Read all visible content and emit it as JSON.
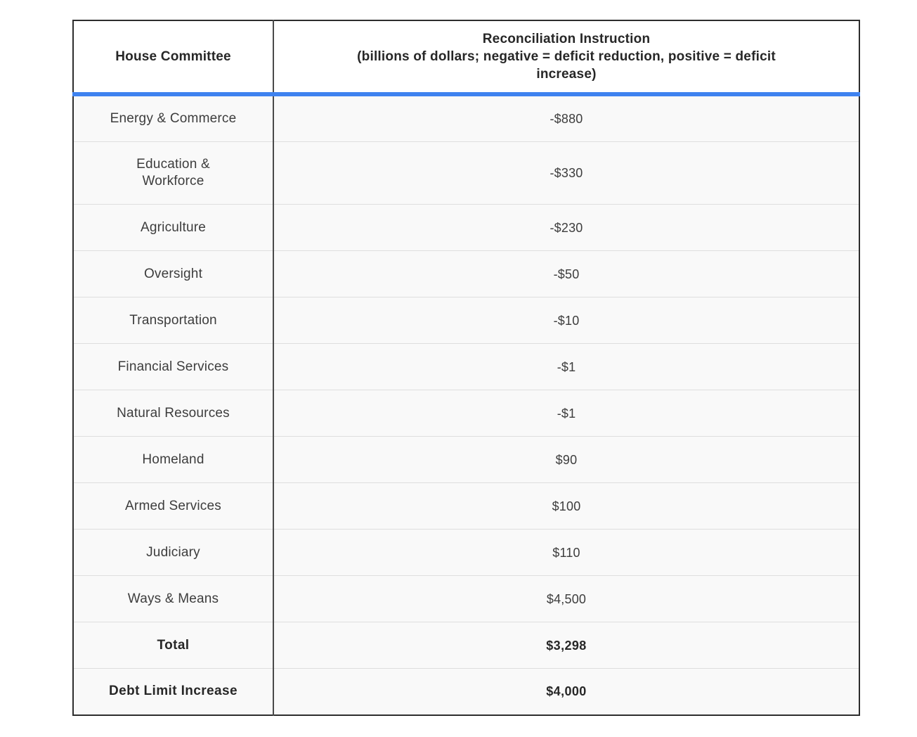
{
  "table": {
    "header": {
      "committee": "House Committee",
      "instruction": "Reconciliation Instruction\n(billions of dollars; negative = deficit reduction, positive = deficit\nincrease)"
    },
    "rows": [
      {
        "committee": "Energy & Commerce",
        "value": "-$880",
        "bold": false
      },
      {
        "committee": "Education &\nWorkforce",
        "value": "-$330",
        "bold": false
      },
      {
        "committee": "Agriculture",
        "value": "-$230",
        "bold": false
      },
      {
        "committee": "Oversight",
        "value": "-$50",
        "bold": false
      },
      {
        "committee": "Transportation",
        "value": "-$10",
        "bold": false
      },
      {
        "committee": "Financial Services",
        "value": "-$1",
        "bold": false
      },
      {
        "committee": "Natural Resources",
        "value": "-$1",
        "bold": false
      },
      {
        "committee": "Homeland",
        "value": "$90",
        "bold": false
      },
      {
        "committee": "Armed Services",
        "value": "$100",
        "bold": false
      },
      {
        "committee": "Judiciary",
        "value": "$110",
        "bold": false
      },
      {
        "committee": "Ways & Means",
        "value": "$4,500",
        "bold": false
      },
      {
        "committee": "Total",
        "value": "$3,298",
        "bold": true
      },
      {
        "committee": "Debt Limit Increase",
        "value": "$4,000",
        "bold": true
      }
    ]
  },
  "colors": {
    "accent_blue": "#3e82ef",
    "row_background": "#f9f9f9",
    "header_background": "#ffffff",
    "body_text": "#3d3d3d",
    "bold_text": "#272727"
  },
  "chart_data": {
    "type": "table",
    "title": "Reconciliation Instruction by House Committee",
    "columns": [
      "House Committee",
      "Reconciliation Instruction (billions of dollars; negative = deficit reduction, positive = deficit increase)"
    ],
    "categories": [
      "Energy & Commerce",
      "Education & Workforce",
      "Agriculture",
      "Oversight",
      "Transportation",
      "Financial Services",
      "Natural Resources",
      "Homeland",
      "Armed Services",
      "Judiciary",
      "Ways & Means"
    ],
    "values": [
      -880,
      -330,
      -230,
      -50,
      -10,
      -1,
      -1,
      90,
      100,
      110,
      4500
    ],
    "summary_rows": [
      {
        "label": "Total",
        "value": 3298
      },
      {
        "label": "Debt Limit Increase",
        "value": 4000
      }
    ],
    "units": "billions of dollars",
    "note": "negative = deficit reduction, positive = deficit increase"
  }
}
